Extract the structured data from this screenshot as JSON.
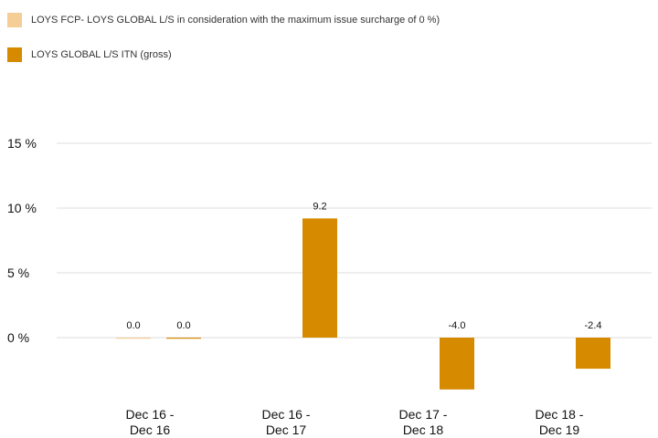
{
  "chart_data": {
    "type": "bar",
    "categories": [
      [
        "Dec 16 -",
        "Dec 16"
      ],
      [
        "Dec 16 -",
        "Dec 17"
      ],
      [
        "Dec 17 -",
        "Dec 18"
      ],
      [
        "Dec 18 -",
        "Dec 19"
      ]
    ],
    "series": [
      {
        "name": "LOYS FCP- LOYS GLOBAL L/S in consideration with the maximum issue surcharge of 0 %)",
        "color": "#f5cd96",
        "values": [
          0.0,
          null,
          null,
          null
        ],
        "labels": [
          "0.0",
          "",
          "",
          ""
        ]
      },
      {
        "name": "LOYS GLOBAL L/S ITN (gross)",
        "color": "#d68a00",
        "values": [
          0.0,
          9.2,
          -4.0,
          -2.4
        ],
        "labels": [
          "0.0",
          "9.2",
          "-4.0",
          "-2.4"
        ]
      }
    ],
    "yticks": [
      15,
      10,
      5,
      0
    ],
    "ytick_labels": [
      "15 %",
      "10 %",
      "5 %",
      "0 %"
    ],
    "ylim": [
      -4.5,
      15
    ],
    "grid": true,
    "legend_position": "top-left"
  }
}
